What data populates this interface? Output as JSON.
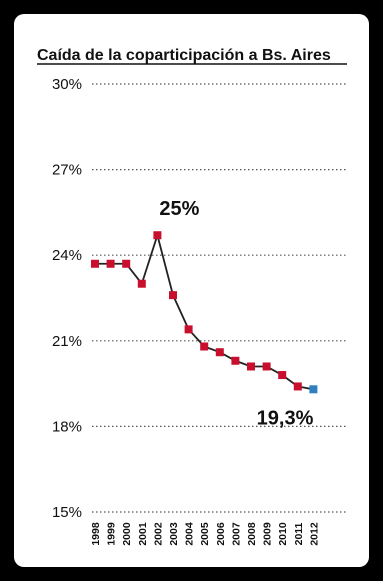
{
  "colors": {
    "frame_background": "#000000",
    "panel_background": "#ffffff",
    "marker": "#c8102e",
    "last_marker": "#2f7fc1",
    "line": "#222222",
    "grid": "#555555"
  },
  "chart_data": {
    "type": "line",
    "title": "Caída de la coparticipación a Bs. Aires",
    "xlabel": "",
    "ylabel": "",
    "grid": true,
    "legend": "none",
    "ylim": [
      15,
      30
    ],
    "y_ticks": [
      {
        "value": 30,
        "label": "30%"
      },
      {
        "value": 27,
        "label": "27%"
      },
      {
        "value": 24,
        "label": "24%"
      },
      {
        "value": 21,
        "label": "21%"
      },
      {
        "value": 18,
        "label": "18%"
      },
      {
        "value": 15,
        "label": "15%"
      }
    ],
    "x": [
      "1998",
      "1999",
      "2000",
      "2001",
      "2002",
      "2003",
      "2004",
      "2005",
      "2006",
      "2007",
      "2008",
      "2009",
      "2010",
      "2011",
      "2012"
    ],
    "values": [
      23.7,
      23.7,
      23.7,
      23.0,
      24.7,
      22.6,
      21.4,
      20.8,
      20.6,
      20.3,
      20.1,
      20.1,
      19.8,
      19.4,
      19.3
    ],
    "annotations": [
      {
        "text": "25%",
        "x": "2002",
        "y": 24.7
      },
      {
        "text": "19,3%",
        "x": "2012",
        "y": 19.3
      }
    ]
  }
}
